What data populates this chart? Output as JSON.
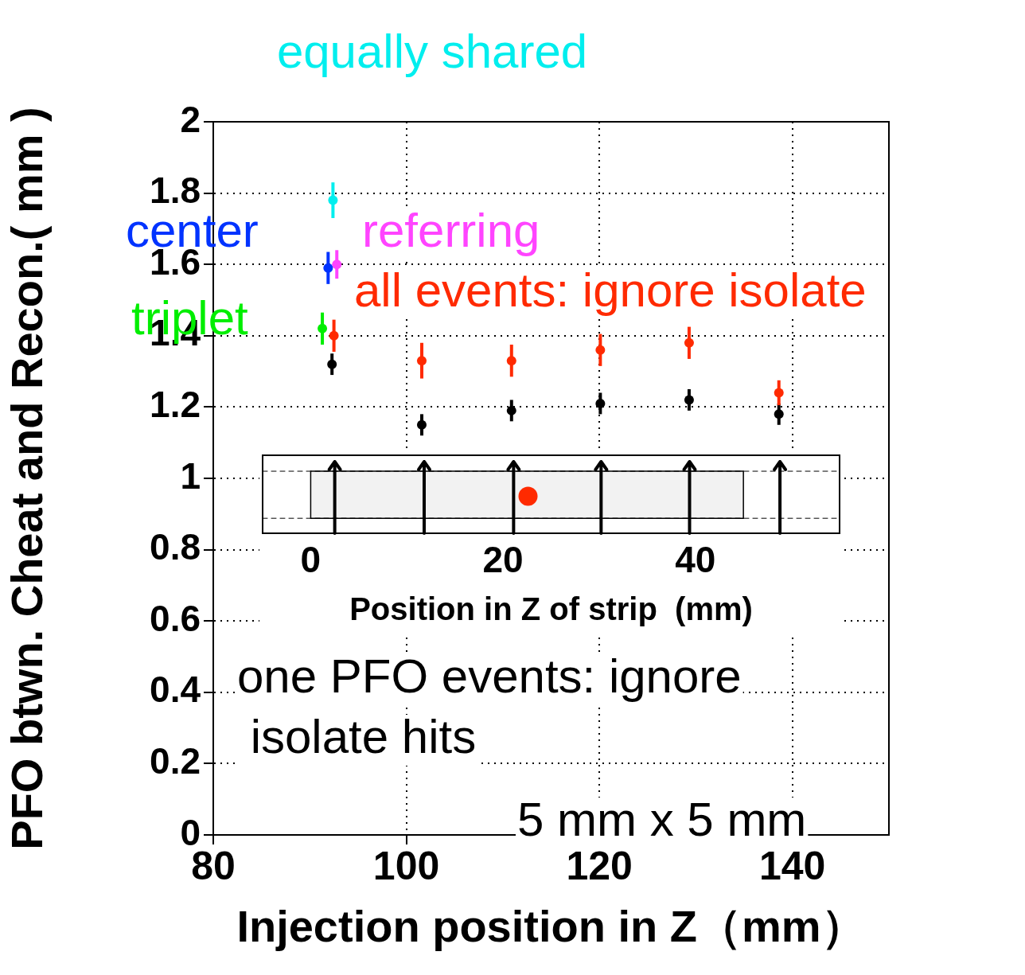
{
  "chart_data": {
    "type": "scatter",
    "xlabel": "Injection position in Z（mm）",
    "ylabel": "PFO btwn. Cheat and Recon.( mm )",
    "xlim": [
      80,
      150
    ],
    "xticks": [
      80,
      100,
      120,
      140
    ],
    "ylim": [
      0,
      2
    ],
    "yticks": [
      0,
      0.2,
      0.4,
      0.6,
      0.8,
      1,
      1.2,
      1.4,
      1.6,
      1.8,
      2
    ],
    "x2lim": [
      -5,
      55
    ],
    "x2ticks": [
      0,
      20,
      40
    ],
    "x2label": "Position in Z of strip  (mm)",
    "grid": true,
    "legend": false,
    "marker": "circle",
    "series": [
      {
        "name": "one PFO events: ignore isolate hits",
        "color": "#000000",
        "x": [
          92.3,
          101.6,
          110.9,
          120.1,
          129.3,
          138.6
        ],
        "values": [
          1.32,
          1.15,
          1.19,
          1.21,
          1.22,
          1.18
        ],
        "errors": [
          0.03,
          0.03,
          0.03,
          0.03,
          0.03,
          0.03
        ]
      },
      {
        "name": "all events: ignore isolate",
        "color": "#ff2a00",
        "x": [
          92.5,
          101.6,
          110.9,
          120.1,
          129.3,
          138.6
        ],
        "values": [
          1.4,
          1.33,
          1.33,
          1.36,
          1.38,
          1.24
        ],
        "errors": [
          0.045,
          0.05,
          0.045,
          0.045,
          0.045,
          0.035
        ]
      },
      {
        "name": "equally shared",
        "color": "#00eeee",
        "x": [
          92.4
        ],
        "values": [
          1.78
        ],
        "errors": [
          0.05
        ]
      },
      {
        "name": "center",
        "color": "#0033ff",
        "x": [
          91.9
        ],
        "values": [
          1.59
        ],
        "errors": [
          0.045
        ]
      },
      {
        "name": "referring",
        "color": "#ff44ff",
        "x": [
          92.8
        ],
        "values": [
          1.6
        ],
        "errors": [
          0.04
        ]
      },
      {
        "name": "triplet",
        "color": "#00ee00",
        "x": [
          91.3
        ],
        "values": [
          1.42
        ],
        "errors": [
          0.045
        ]
      },
      {
        "color": "#ff2a00",
        "axis": "x2",
        "x": [
          22.6
        ],
        "values": [
          0.95
        ]
      }
    ],
    "ref_lines": [
      {
        "axis": "x2",
        "value": 2.5
      },
      {
        "axis": "x2",
        "value": 11.8
      },
      {
        "axis": "x2",
        "value": 21.1
      },
      {
        "axis": "x2",
        "value": 30.2
      },
      {
        "axis": "x2",
        "value": 39.4
      },
      {
        "axis": "x2",
        "value": 48.8
      },
      {
        "axis": "y",
        "value": 1.02,
        "line_style": "dashed"
      },
      {
        "axis": "y",
        "value": 0.888,
        "line_style": "dashed"
      }
    ],
    "bands": [
      {
        "axis": "x2",
        "from": 0,
        "to": 45,
        "color": "#f2f2f2"
      }
    ],
    "annotations": [
      "5 mm x 5 mm"
    ]
  }
}
